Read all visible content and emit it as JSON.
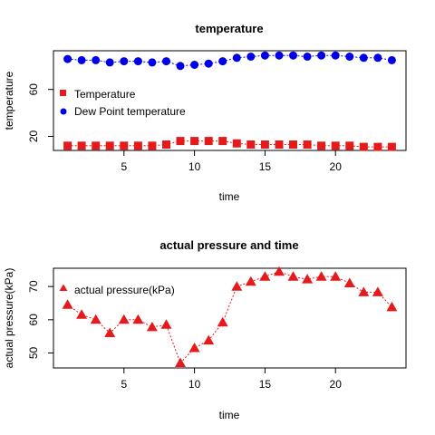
{
  "chart_data": [
    {
      "type": "line",
      "title": "temperature",
      "xlabel": "time",
      "ylabel": "temperature",
      "xlim": [
        0,
        25
      ],
      "ylim": [
        8,
        93
      ],
      "x_ticks": [
        5,
        10,
        15,
        20
      ],
      "y_ticks": [
        20,
        60
      ],
      "legend_position": "left",
      "x": [
        1,
        2,
        3,
        4,
        5,
        6,
        7,
        8,
        9,
        10,
        11,
        12,
        13,
        14,
        15,
        16,
        17,
        18,
        19,
        20,
        21,
        22,
        23,
        24
      ],
      "series": [
        {
          "name": "Temperature",
          "marker": "square",
          "color": "#e41a1c",
          "values": [
            12,
            12,
            12,
            12,
            12,
            12,
            12,
            13,
            16,
            16,
            16,
            16,
            14,
            13,
            13,
            13,
            13,
            13,
            12,
            12,
            12,
            11,
            11,
            11
          ]
        },
        {
          "name": "Dew Point temperature",
          "marker": "circle",
          "color": "#0000e6",
          "values": [
            86,
            85,
            85,
            83,
            84,
            84,
            83,
            84,
            80,
            81,
            82,
            84,
            87,
            88,
            89,
            89,
            89,
            88,
            89,
            89,
            88,
            87,
            87,
            85
          ]
        }
      ]
    },
    {
      "type": "line",
      "title": "actual pressure and time",
      "xlabel": "time",
      "ylabel": "actual pressure(kPa)",
      "xlim": [
        0,
        25
      ],
      "ylim": [
        45.5,
        75.5
      ],
      "x_ticks": [
        5,
        10,
        15,
        20
      ],
      "y_ticks": [
        50,
        60,
        70
      ],
      "legend_position": "top-left",
      "x": [
        1,
        2,
        3,
        4,
        5,
        6,
        7,
        8,
        9,
        10,
        11,
        12,
        13,
        14,
        15,
        16,
        17,
        18,
        19,
        20,
        21,
        22,
        23,
        24
      ],
      "series": [
        {
          "name": "actual pressure(kPa)",
          "marker": "triangle",
          "color": "#e41a1c",
          "values": [
            64.5,
            61.5,
            60,
            56,
            60,
            60,
            57.8,
            58.5,
            47,
            51.5,
            53.8,
            59.2,
            70,
            71.5,
            73,
            74.5,
            73,
            72.2,
            73,
            73,
            71,
            68.3,
            68.3,
            63.8
          ]
        }
      ]
    }
  ]
}
